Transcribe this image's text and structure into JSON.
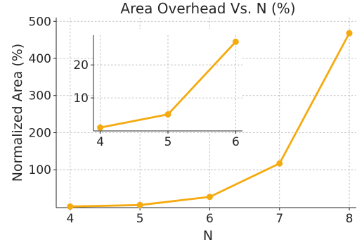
{
  "chart_data": [
    {
      "type": "line",
      "title": "Area Overhead Vs. N (%)",
      "xlabel": "N",
      "ylabel": "Normalized Area (%)",
      "x": [
        4,
        5,
        6,
        7,
        8
      ],
      "series": [
        {
          "values": [
            1,
            5,
            27,
            117,
            468
          ]
        }
      ],
      "xticks": [
        "4",
        "5",
        "6",
        "7",
        "8"
      ],
      "yticks": [
        "100",
        "200",
        "300",
        "400",
        "500"
      ],
      "xlim": [
        3.8,
        8.1
      ],
      "ylim": [
        -2,
        510
      ],
      "grid": true,
      "color": "#F5AA0F"
    },
    {
      "type": "line",
      "title": "",
      "xlabel": "",
      "ylabel": "",
      "x": [
        4,
        5,
        6
      ],
      "series": [
        {
          "values": [
            1,
            5,
            27
          ]
        }
      ],
      "xticks": [
        "4",
        "5",
        "6"
      ],
      "yticks": [
        "10",
        "20"
      ],
      "xlim": [
        3.9,
        6.1
      ],
      "ylim": [
        0,
        29
      ],
      "grid": true,
      "color": "#F5AA0F"
    }
  ]
}
